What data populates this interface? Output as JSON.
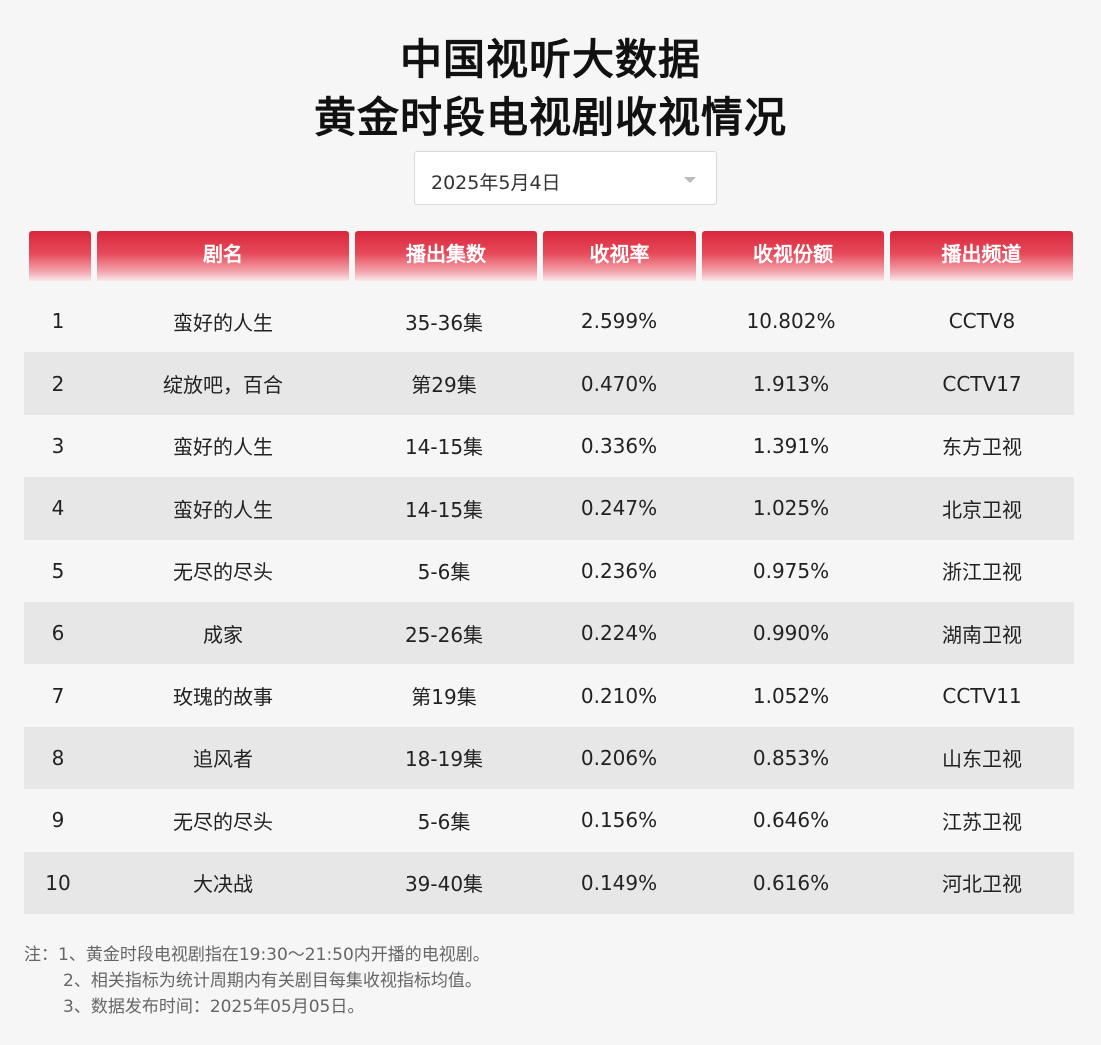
{
  "title": {
    "line1": "中国视听大数据",
    "line2": "黄金时段电视剧收视情况"
  },
  "date_select": {
    "value": "2025年5月4日"
  },
  "table": {
    "headers": [
      "",
      "剧名",
      "播出集数",
      "收视率",
      "收视份额",
      "播出频道"
    ],
    "rows": [
      [
        "1",
        "蛮好的人生",
        "35-36集",
        "2.599%",
        "10.802%",
        "CCTV8"
      ],
      [
        "2",
        "绽放吧，百合",
        "第29集",
        "0.470%",
        "1.913%",
        "CCTV17"
      ],
      [
        "3",
        "蛮好的人生",
        "14-15集",
        "0.336%",
        "1.391%",
        "东方卫视"
      ],
      [
        "4",
        "蛮好的人生",
        "14-15集",
        "0.247%",
        "1.025%",
        "北京卫视"
      ],
      [
        "5",
        "无尽的尽头",
        "5-6集",
        "0.236%",
        "0.975%",
        "浙江卫视"
      ],
      [
        "6",
        "成家",
        "25-26集",
        "0.224%",
        "0.990%",
        "湖南卫视"
      ],
      [
        "7",
        "玫瑰的故事",
        "第19集",
        "0.210%",
        "1.052%",
        "CCTV11"
      ],
      [
        "8",
        "追风者",
        "18-19集",
        "0.206%",
        "0.853%",
        "山东卫视"
      ],
      [
        "9",
        "无尽的尽头",
        "5-6集",
        "0.156%",
        "0.646%",
        "江苏卫视"
      ],
      [
        "10",
        "大决战",
        "39-40集",
        "0.149%",
        "0.616%",
        "河北卫视"
      ]
    ]
  },
  "notes": [
    "注：1、黄金时段电视剧指在19:30～21:50内开播的电视剧。",
    "2、相关指标为统计周期内有关剧目每集收视指标均值。",
    "3、数据发布时间：2025年05月05日。"
  ],
  "colors": {
    "header_red": "#d8273b"
  }
}
